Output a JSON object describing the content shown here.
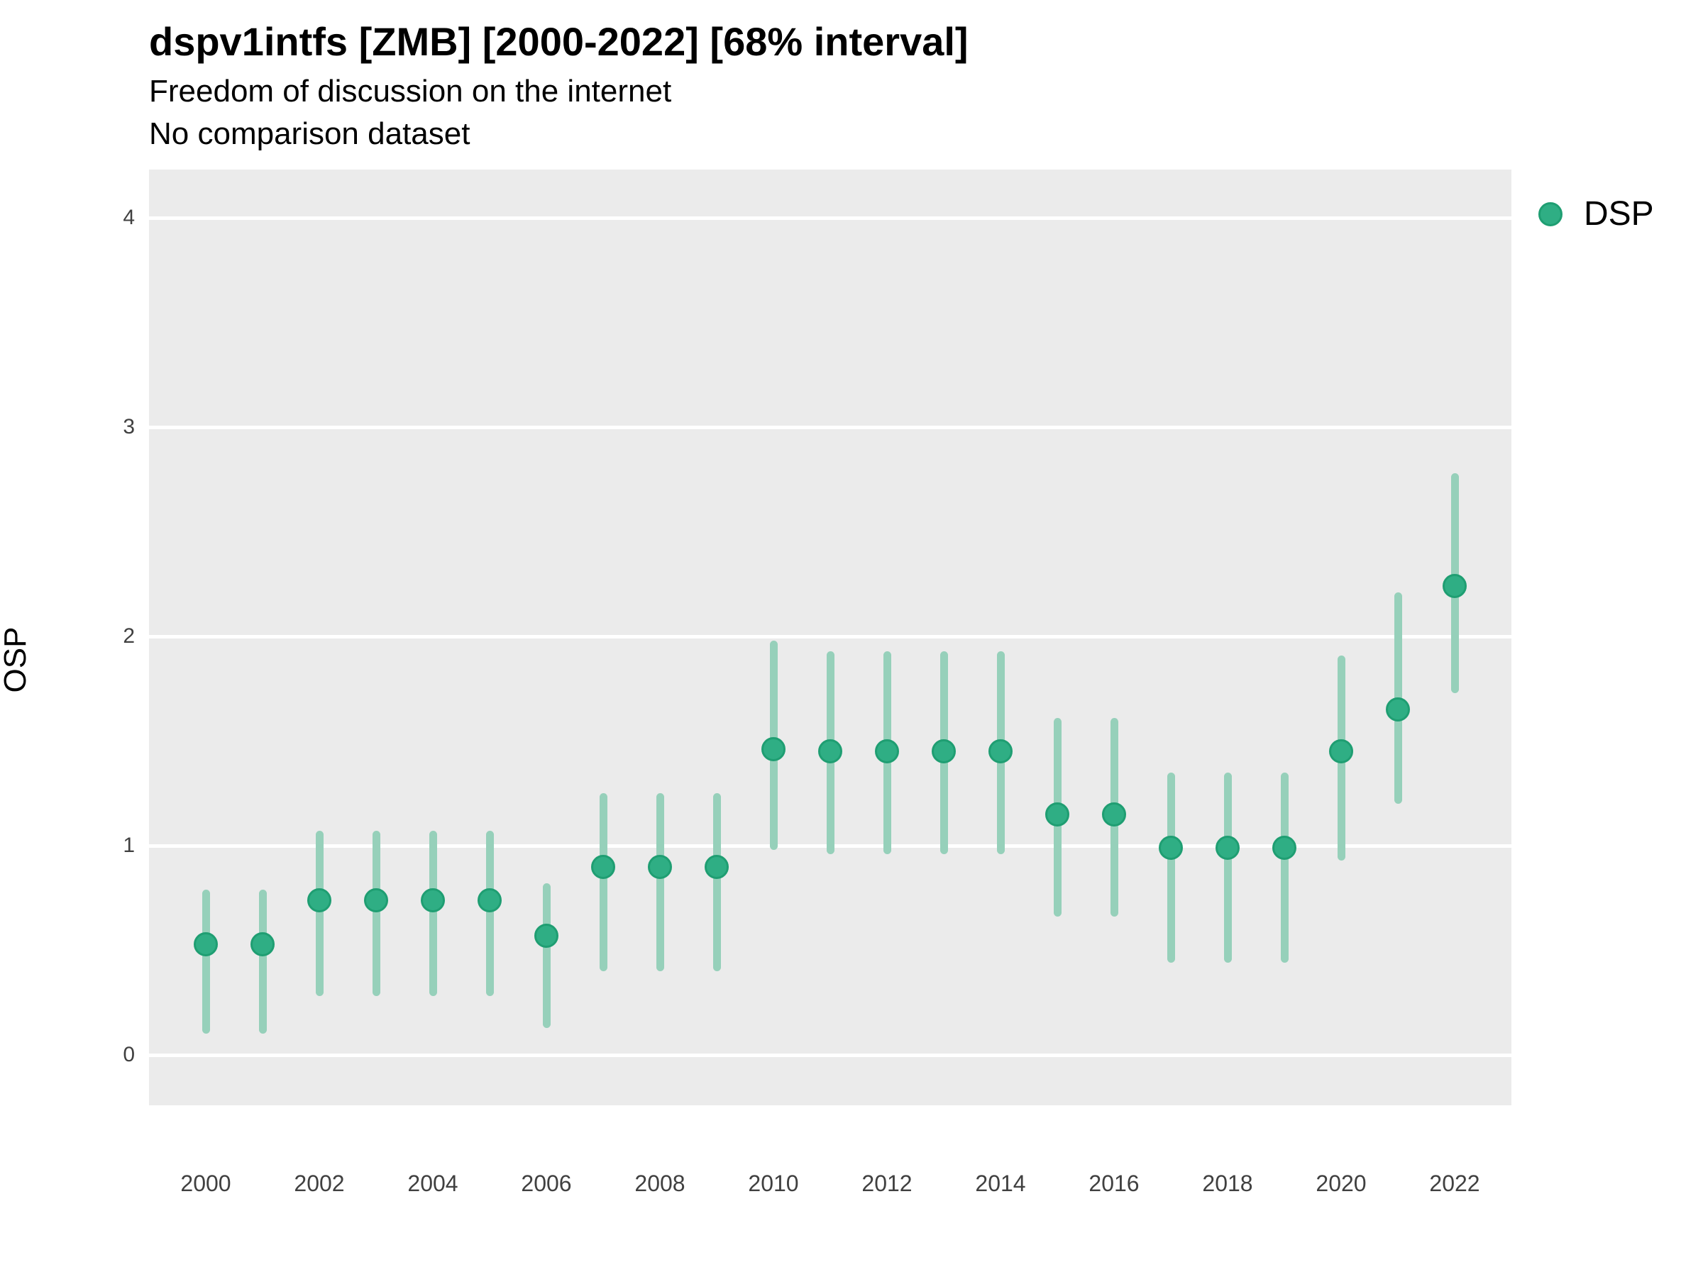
{
  "header": {
    "title": "dspv1intfs [ZMB] [2000-2022] [68% interval]",
    "subtitle": "Freedom of discussion on the internet",
    "note": "No comparison dataset"
  },
  "legend": {
    "label": "DSP",
    "position": "right"
  },
  "colors": {
    "point_fill": "#2fae84",
    "point_stroke": "#1f9e72",
    "interval_line": "#96d0ba",
    "panel_background": "#ebebeb",
    "gridline": "#ffffff",
    "axis_text": "#404040",
    "title_text": "#000000"
  },
  "chart_data": {
    "type": "pointrange",
    "title": "dspv1intfs [ZMB] [2000-2022] [68% interval]",
    "subtitle": "Freedom of discussion on the internet",
    "note": "No comparison dataset",
    "interval_level": "68%",
    "xlabel": "",
    "ylabel": "OSP",
    "grid": "major-horizontal",
    "legend_position": "right-top",
    "xlim": [
      1999,
      2023
    ],
    "ylim": [
      -0.24,
      4.23
    ],
    "x_ticks": [
      2000,
      2002,
      2004,
      2006,
      2008,
      2010,
      2012,
      2014,
      2016,
      2018,
      2020,
      2022
    ],
    "y_ticks": [
      0,
      1,
      2,
      3,
      4
    ],
    "series": [
      {
        "name": "DSP",
        "points": [
          {
            "year": 2000,
            "value": 0.53,
            "lower": 0.1,
            "upper": 0.79
          },
          {
            "year": 2001,
            "value": 0.53,
            "lower": 0.1,
            "upper": 0.79
          },
          {
            "year": 2002,
            "value": 0.74,
            "lower": 0.28,
            "upper": 1.07
          },
          {
            "year": 2003,
            "value": 0.74,
            "lower": 0.28,
            "upper": 1.07
          },
          {
            "year": 2004,
            "value": 0.74,
            "lower": 0.28,
            "upper": 1.07
          },
          {
            "year": 2005,
            "value": 0.74,
            "lower": 0.28,
            "upper": 1.07
          },
          {
            "year": 2006,
            "value": 0.57,
            "lower": 0.13,
            "upper": 0.82
          },
          {
            "year": 2007,
            "value": 0.9,
            "lower": 0.4,
            "upper": 1.25
          },
          {
            "year": 2008,
            "value": 0.9,
            "lower": 0.4,
            "upper": 1.25
          },
          {
            "year": 2009,
            "value": 0.9,
            "lower": 0.4,
            "upper": 1.25
          },
          {
            "year": 2010,
            "value": 1.46,
            "lower": 0.98,
            "upper": 1.98
          },
          {
            "year": 2011,
            "value": 1.45,
            "lower": 0.96,
            "upper": 1.93
          },
          {
            "year": 2012,
            "value": 1.45,
            "lower": 0.96,
            "upper": 1.93
          },
          {
            "year": 2013,
            "value": 1.45,
            "lower": 0.96,
            "upper": 1.93
          },
          {
            "year": 2014,
            "value": 1.45,
            "lower": 0.96,
            "upper": 1.93
          },
          {
            "year": 2015,
            "value": 1.15,
            "lower": 0.66,
            "upper": 1.61
          },
          {
            "year": 2016,
            "value": 1.15,
            "lower": 0.66,
            "upper": 1.61
          },
          {
            "year": 2017,
            "value": 0.99,
            "lower": 0.44,
            "upper": 1.35
          },
          {
            "year": 2018,
            "value": 0.99,
            "lower": 0.44,
            "upper": 1.35
          },
          {
            "year": 2019,
            "value": 0.99,
            "lower": 0.44,
            "upper": 1.35
          },
          {
            "year": 2020,
            "value": 1.45,
            "lower": 0.93,
            "upper": 1.91
          },
          {
            "year": 2021,
            "value": 1.65,
            "lower": 1.2,
            "upper": 2.21
          },
          {
            "year": 2022,
            "value": 2.24,
            "lower": 1.73,
            "upper": 2.78
          }
        ]
      }
    ]
  }
}
